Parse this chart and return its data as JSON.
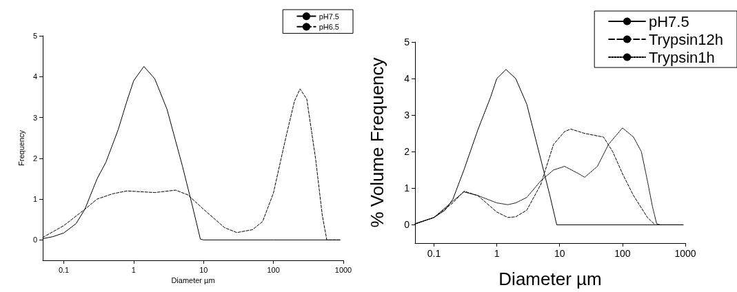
{
  "chart_data": [
    {
      "type": "line",
      "xlabel": "Diameter µm",
      "ylabel": "Frequency",
      "log": "x",
      "xlim": [
        0.05,
        1000
      ],
      "xticks": [
        0.1,
        1,
        10,
        100,
        1000
      ],
      "ylim": [
        -0.5,
        5
      ],
      "yticks": [
        0,
        1,
        2,
        3,
        4,
        5
      ],
      "legend": "top right",
      "grid": false,
      "marker": "none",
      "series": [
        {
          "name": "pH7.5",
          "color": "#000000",
          "line_style": "solid",
          "x": [
            0.05,
            0.07,
            0.1,
            0.15,
            0.2,
            0.3,
            0.4,
            0.6,
            0.8,
            1,
            1.4,
            2,
            3,
            5,
            7,
            9,
            10,
            100,
            900
          ],
          "values": [
            0.03,
            0.08,
            0.17,
            0.4,
            0.75,
            1.5,
            1.9,
            2.7,
            3.4,
            3.9,
            4.25,
            3.95,
            3.2,
            1.8,
            0.8,
            0.02,
            0,
            0,
            0
          ]
        },
        {
          "name": "pH6.5",
          "color": "#000000",
          "line_style": "dashed",
          "x": [
            0.05,
            0.1,
            0.2,
            0.3,
            0.5,
            0.8,
            2,
            4,
            6,
            10,
            20,
            30,
            50,
            70,
            100,
            150,
            200,
            240,
            300,
            400,
            500,
            580,
            900
          ],
          "values": [
            0.06,
            0.35,
            0.75,
            1.0,
            1.13,
            1.2,
            1.16,
            1.22,
            1.1,
            0.75,
            0.3,
            0.18,
            0.25,
            0.45,
            1.15,
            2.5,
            3.4,
            3.7,
            3.45,
            2.0,
            0.6,
            0.0,
            0
          ]
        }
      ]
    },
    {
      "type": "line",
      "xlabel": "Diameter µm",
      "ylabel": "% Volume Frequency",
      "log": "x",
      "xlim": [
        0.05,
        1000
      ],
      "xticks": [
        0.1,
        1,
        10,
        100,
        1000
      ],
      "ylim": [
        -0.5,
        5
      ],
      "yticks": [
        0,
        1,
        2,
        3,
        4,
        5
      ],
      "legend": "top right",
      "grid": false,
      "marker": "none",
      "series": [
        {
          "name": "pH7.5",
          "color": "#000000",
          "line_style": "solid",
          "x": [
            0.05,
            0.1,
            0.15,
            0.2,
            0.3,
            0.5,
            0.8,
            1,
            1.4,
            2,
            3,
            5,
            7,
            9,
            930
          ],
          "values": [
            0.02,
            0.2,
            0.4,
            0.7,
            1.5,
            2.6,
            3.5,
            4.0,
            4.25,
            4.0,
            3.3,
            1.8,
            0.8,
            0,
            0
          ]
        },
        {
          "name": "Trypsin12h",
          "color": "#000000",
          "line_style": "dashed",
          "x": [
            0.05,
            0.1,
            0.2,
            0.3,
            0.5,
            1,
            1.5,
            2,
            3,
            5,
            8,
            12,
            15,
            25,
            50,
            70,
            100,
            150,
            250,
            330,
            900
          ],
          "values": [
            0.03,
            0.2,
            0.6,
            0.92,
            0.8,
            0.35,
            0.2,
            0.22,
            0.4,
            1.1,
            2.2,
            2.55,
            2.62,
            2.5,
            2.4,
            2.0,
            1.4,
            0.8,
            0.2,
            0,
            0
          ]
        },
        {
          "name": "Trypsin1h",
          "color": "#000000",
          "line_style": "dotted",
          "x": [
            0.05,
            0.1,
            0.2,
            0.3,
            0.5,
            1,
            1.5,
            2,
            3,
            5,
            8,
            12,
            20,
            25,
            40,
            60,
            100,
            150,
            200,
            250,
            300,
            350,
            400,
            900
          ],
          "values": [
            0.03,
            0.2,
            0.65,
            0.9,
            0.8,
            0.6,
            0.55,
            0.6,
            0.75,
            1.2,
            1.5,
            1.6,
            1.4,
            1.3,
            1.6,
            2.2,
            2.65,
            2.4,
            2.0,
            1.2,
            0.5,
            0.03,
            0,
            0
          ]
        }
      ]
    }
  ]
}
